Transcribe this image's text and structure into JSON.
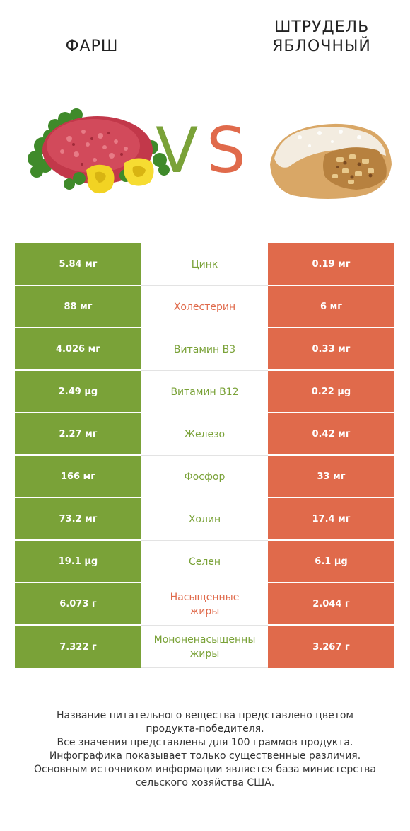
{
  "header": {
    "left_title_lines": [
      "ФАРШ"
    ],
    "right_title_lines": [
      "ШТРУДЕЛЬ",
      "ЯБЛОЧНЫЙ"
    ],
    "vs_v": "V",
    "vs_s": "S"
  },
  "colors": {
    "left_winner": "#7aa238",
    "right_winner": "#e06a4b"
  },
  "images": {
    "left": "ground-meat-with-yellow-pepper-and-parsley",
    "right": "apple-strudel-slice"
  },
  "rows": [
    {
      "left": "5.84 мг",
      "nutrient": "Цинк",
      "right": "0.19 мг",
      "winner": "left"
    },
    {
      "left": "88 мг",
      "nutrient": "Холестерин",
      "right": "6 мг",
      "winner": "right"
    },
    {
      "left": "4.026 мг",
      "nutrient": "Витамин B3",
      "right": "0.33 мг",
      "winner": "left"
    },
    {
      "left": "2.49 µg",
      "nutrient": "Витамин B12",
      "right": "0.22 µg",
      "winner": "left"
    },
    {
      "left": "2.27 мг",
      "nutrient": "Железо",
      "right": "0.42 мг",
      "winner": "left"
    },
    {
      "left": "166 мг",
      "nutrient": "Фосфор",
      "right": "33 мг",
      "winner": "left"
    },
    {
      "left": "73.2 мг",
      "nutrient": "Холин",
      "right": "17.4 мг",
      "winner": "left"
    },
    {
      "left": "19.1 µg",
      "nutrient": "Селен",
      "right": "6.1 µg",
      "winner": "left"
    },
    {
      "left": "6.073 г",
      "nutrient": "Насыщенные жиры",
      "right": "2.044 г",
      "winner": "right"
    },
    {
      "left": "7.322 г",
      "nutrient": "Мононенасыщенные жиры",
      "right": "3.267 г",
      "winner": "left"
    }
  ],
  "row_name_lines": [
    [
      "Цинк"
    ],
    [
      "Холестерин"
    ],
    [
      "Витамин B3"
    ],
    [
      "Витамин B12"
    ],
    [
      "Железо"
    ],
    [
      "Фосфор"
    ],
    [
      "Холин"
    ],
    [
      "Селен"
    ],
    [
      "Насыщенные",
      "жиры"
    ],
    [
      "Мононенасыщенны",
      "жиры"
    ]
  ],
  "footer": [
    "Название питательного вещества представлено цветом",
    "продукта-победителя.",
    "Все значения представлены для 100 граммов продукта.",
    "Инфографика показывает только существенные различия.",
    "Основным источником информации является база министерства",
    "сельского хозяйства США."
  ]
}
